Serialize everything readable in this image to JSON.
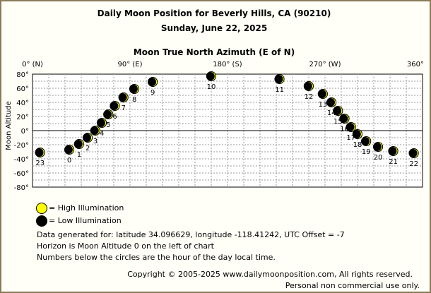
{
  "title": "Daily Moon Position for Beverly Hills, CA (90210)",
  "subtitle": "Sunday, June 22, 2025",
  "legend": {
    "high": "= High Illumination",
    "low": "= Low Illumination",
    "high_color": "#ffff00",
    "low_color": "#000000"
  },
  "notes": {
    "line1": "Data generated for: latitude 34.096629, longitude -118.41242, UTC Offset = -7",
    "line2": "Horizon is Moon Altitude 0 on the left of chart",
    "line3": "Numbers below the circles are the hour of the day local time."
  },
  "copyright": {
    "line1": "Copyright © 2005-2025 www.dailymoonposition.com, All rights reserved.",
    "line2": "Personal non commercial use only."
  },
  "chart_data": {
    "type": "scatter",
    "xlabel": "Moon True North Azimuth (E of N)",
    "ylabel": "Moon Altitude",
    "xlim": [
      0,
      360
    ],
    "ylim": [
      -80,
      80
    ],
    "x_ticks": [
      "0° (N)",
      "90° (E)",
      "180° (S)",
      "270° (W)",
      "360°"
    ],
    "y_ticks": [
      "80°",
      "60°",
      "40°",
      "20°",
      "0°",
      "-20°",
      "-40°",
      "-60°",
      "-80°"
    ],
    "grid": true,
    "points": [
      {
        "hour": "23",
        "azimuth": 7,
        "altitude": -31
      },
      {
        "hour": "0",
        "azimuth": 34,
        "altitude": -27
      },
      {
        "hour": "1",
        "azimuth": 43,
        "altitude": -19
      },
      {
        "hour": "2",
        "azimuth": 51,
        "altitude": -10
      },
      {
        "hour": "3",
        "azimuth": 58,
        "altitude": 0
      },
      {
        "hour": "4",
        "azimuth": 64,
        "altitude": 11
      },
      {
        "hour": "5",
        "azimuth": 70,
        "altitude": 23
      },
      {
        "hour": "6",
        "azimuth": 76,
        "altitude": 35
      },
      {
        "hour": "7",
        "azimuth": 84,
        "altitude": 47
      },
      {
        "hour": "8",
        "azimuth": 94,
        "altitude": 59
      },
      {
        "hour": "9",
        "azimuth": 111,
        "altitude": 69
      },
      {
        "hour": "10",
        "azimuth": 165,
        "altitude": 77
      },
      {
        "hour": "11",
        "azimuth": 228,
        "altitude": 73
      },
      {
        "hour": "12",
        "azimuth": 255,
        "altitude": 63
      },
      {
        "hour": "13",
        "azimuth": 268,
        "altitude": 52
      },
      {
        "hour": "14",
        "azimuth": 276,
        "altitude": 40
      },
      {
        "hour": "15",
        "azimuth": 282,
        "altitude": 28
      },
      {
        "hour": "16",
        "azimuth": 288,
        "altitude": 17
      },
      {
        "hour": "17",
        "azimuth": 294,
        "altitude": 5
      },
      {
        "hour": "18",
        "azimuth": 300,
        "altitude": -5
      },
      {
        "hour": "19",
        "azimuth": 308,
        "altitude": -15
      },
      {
        "hour": "20",
        "azimuth": 319,
        "altitude": -23
      },
      {
        "hour": "21",
        "azimuth": 333,
        "altitude": -29
      },
      {
        "hour": "22",
        "azimuth": 352,
        "altitude": -32
      }
    ]
  }
}
